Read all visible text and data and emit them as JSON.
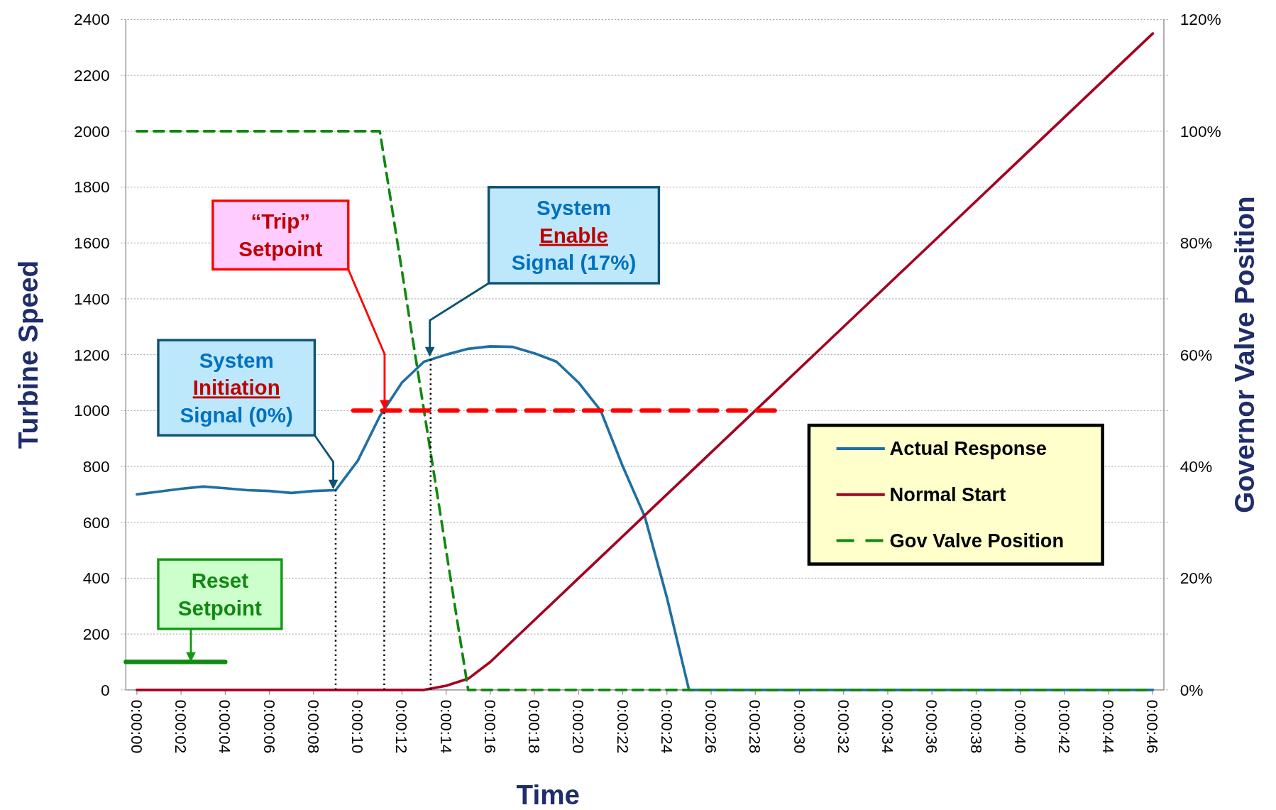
{
  "chart_data": {
    "type": "line",
    "ylabel": "Turbine Speed",
    "y2label": "Governor Valve Position",
    "xlabel": "Time",
    "x": [
      0,
      1,
      2,
      3,
      4,
      5,
      6,
      7,
      8,
      9,
      10,
      11,
      12,
      13,
      14,
      15,
      16,
      17,
      18,
      19,
      20,
      21,
      22,
      23,
      24,
      25,
      26,
      27,
      28,
      29,
      30,
      31,
      32,
      33,
      34,
      35,
      36,
      37,
      38,
      39,
      40,
      41,
      42,
      43,
      44,
      45,
      46
    ],
    "xlim": [
      -0.5,
      46.5
    ],
    "xticks": [
      {
        "value": 0,
        "label": "0:00:00"
      },
      {
        "value": 2,
        "label": "0:00:02"
      },
      {
        "value": 4,
        "label": "0:00:04"
      },
      {
        "value": 6,
        "label": "0:00:06"
      },
      {
        "value": 8,
        "label": "0:00:08"
      },
      {
        "value": 10,
        "label": "0:00:10"
      },
      {
        "value": 12,
        "label": "0:00:12"
      },
      {
        "value": 14,
        "label": "0:00:14"
      },
      {
        "value": 16,
        "label": "0:00:16"
      },
      {
        "value": 18,
        "label": "0:00:18"
      },
      {
        "value": 20,
        "label": "0:00:20"
      },
      {
        "value": 22,
        "label": "0:00:22"
      },
      {
        "value": 24,
        "label": "0:00:24"
      },
      {
        "value": 26,
        "label": "0:00:26"
      },
      {
        "value": 28,
        "label": "0:00:28"
      },
      {
        "value": 30,
        "label": "0:00:30"
      },
      {
        "value": 32,
        "label": "0:00:32"
      },
      {
        "value": 34,
        "label": "0:00:34"
      },
      {
        "value": 36,
        "label": "0:00:36"
      },
      {
        "value": 38,
        "label": "0:00:38"
      },
      {
        "value": 40,
        "label": "0:00:40"
      },
      {
        "value": 42,
        "label": "0:00:42"
      },
      {
        "value": 44,
        "label": "0:00:44"
      },
      {
        "value": 46,
        "label": "0:00:46"
      }
    ],
    "ylim": [
      0,
      2400
    ],
    "yticks": [
      0,
      200,
      400,
      600,
      800,
      1000,
      1200,
      1400,
      1600,
      1800,
      2000,
      2200,
      2400
    ],
    "y2lim": [
      0,
      120
    ],
    "y2ticks": [
      {
        "value": 0,
        "label": "0%"
      },
      {
        "value": 20,
        "label": "20%"
      },
      {
        "value": 40,
        "label": "40%"
      },
      {
        "value": 60,
        "label": "60%"
      },
      {
        "value": 80,
        "label": "80%"
      },
      {
        "value": 100,
        "label": "100%"
      },
      {
        "value": 120,
        "label": "120%"
      }
    ],
    "grid": "y",
    "legend": "right",
    "marker": "none",
    "series": [
      {
        "name": "Actual Response",
        "color": "#1f6fa3",
        "line_style": "solid",
        "values": [
          700,
          710,
          720,
          728,
          722,
          715,
          712,
          705,
          712,
          715,
          820,
          980,
          1100,
          1175,
          1200,
          1221,
          1230,
          1228,
          1205,
          1175,
          1100,
          1000,
          800,
          620,
          330,
          0,
          0,
          0,
          0,
          0,
          0,
          0,
          0,
          0,
          0,
          0,
          0,
          0,
          0,
          0,
          0,
          0,
          0,
          0,
          0,
          0,
          0
        ]
      },
      {
        "name": "Normal Start",
        "color": "#a50021",
        "line_style": "solid",
        "values": [
          0,
          0,
          0,
          0,
          0,
          0,
          0,
          0,
          0,
          0,
          0,
          0,
          0,
          0,
          15,
          40,
          100,
          175,
          250,
          325,
          400,
          475,
          550,
          625,
          700,
          775,
          850,
          925,
          1000,
          1075,
          1150,
          1225,
          1300,
          1375,
          1450,
          1525,
          1600,
          1675,
          1750,
          1825,
          1900,
          1975,
          2050,
          2125,
          2200,
          2275,
          2350
        ]
      },
      {
        "name": "Gov Valve Position",
        "color": "#118811",
        "line_style": "dashed",
        "axis": "y2",
        "values": [
          100,
          100,
          100,
          100,
          100,
          100,
          100,
          100,
          100,
          100,
          100,
          100,
          75,
          50,
          25,
          0,
          0,
          0,
          0,
          0,
          0,
          0,
          0,
          0,
          0,
          0,
          0,
          0,
          0,
          0,
          0,
          0,
          0,
          0,
          0,
          0,
          0,
          0,
          0,
          0,
          0,
          0,
          0,
          0,
          0,
          0,
          0
        ]
      },
      {
        "color": "#ff0000",
        "line_style": "dashed",
        "x": [
          9.8,
          29
        ],
        "values": [
          1000,
          1000
        ]
      },
      {
        "color": "#118811",
        "line_style": "solid",
        "x": [
          -0.5,
          4
        ],
        "values": [
          100,
          100
        ]
      },
      {
        "color": "#000000",
        "line_style": "dotted",
        "x": [
          9,
          9
        ],
        "values": [
          0,
          715
        ]
      },
      {
        "color": "#000000",
        "line_style": "dotted",
        "x": [
          11.2,
          11.2
        ],
        "values": [
          0,
          1000
        ]
      },
      {
        "color": "#000000",
        "line_style": "dotted",
        "x": [
          13.3,
          13.3
        ],
        "values": [
          0,
          1190
        ]
      }
    ],
    "annotations": [
      {
        "text": "System\nInitiation\nSignal (0%)",
        "x": 9,
        "y": 715
      },
      "“Trip”\nSetpoint",
      {
        "text": "System\nEnable\nSignal (17%)",
        "x": 13.3,
        "y": 1190
      },
      {
        "text": "Reset\nSetpoint",
        "x": 2.5,
        "y": 100
      }
    ]
  }
}
